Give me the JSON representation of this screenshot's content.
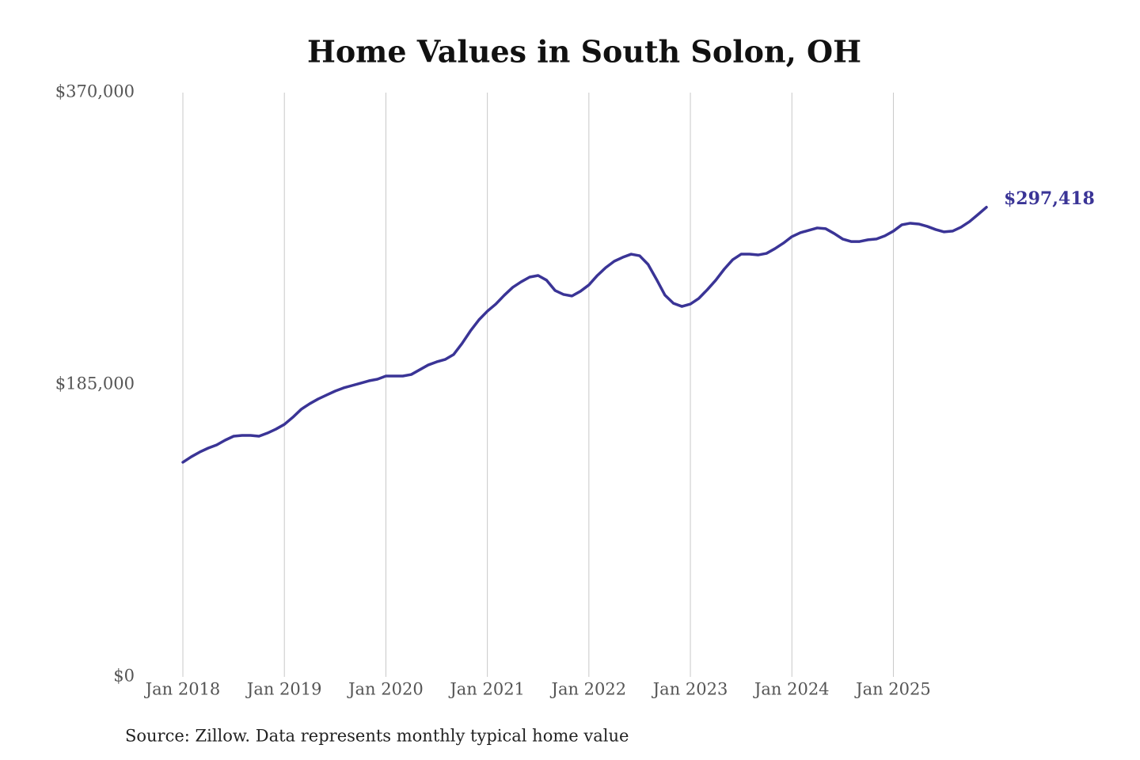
{
  "chart_data": {
    "type": "line",
    "title": "Home Values in South Solon, OH",
    "source": "Source: Zillow. Data represents monthly typical home value",
    "color": "#3a3496",
    "grid": "x",
    "x": [
      "2018-01",
      "2018-02",
      "2018-03",
      "2018-04",
      "2018-05",
      "2018-06",
      "2018-07",
      "2018-08",
      "2018-09",
      "2018-10",
      "2018-11",
      "2018-12",
      "2019-01",
      "2019-02",
      "2019-03",
      "2019-04",
      "2019-05",
      "2019-06",
      "2019-07",
      "2019-08",
      "2019-09",
      "2019-10",
      "2019-11",
      "2019-12",
      "2020-01",
      "2020-02",
      "2020-03",
      "2020-04",
      "2020-05",
      "2020-06",
      "2020-07",
      "2020-08",
      "2020-09",
      "2020-10",
      "2020-11",
      "2020-12",
      "2021-01",
      "2021-02",
      "2021-03",
      "2021-04",
      "2021-05",
      "2021-06",
      "2021-07",
      "2021-08",
      "2021-09",
      "2021-10",
      "2021-11",
      "2021-12",
      "2022-01",
      "2022-02",
      "2022-03",
      "2022-04",
      "2022-05",
      "2022-06",
      "2022-07",
      "2022-08",
      "2022-09",
      "2022-10",
      "2022-11",
      "2022-12",
      "2023-01",
      "2023-02",
      "2023-03",
      "2023-04",
      "2023-05",
      "2023-06",
      "2023-07",
      "2023-08",
      "2023-09",
      "2023-10",
      "2023-11",
      "2023-12",
      "2024-01",
      "2024-02",
      "2024-03",
      "2024-04",
      "2024-05",
      "2024-06",
      "2024-07",
      "2024-08",
      "2024-09",
      "2024-10",
      "2024-11",
      "2024-12",
      "2025-01",
      "2025-02",
      "2025-03",
      "2025-04",
      "2025-05",
      "2025-06",
      "2025-07",
      "2025-08",
      "2025-09",
      "2025-10",
      "2025-11",
      "2025-12"
    ],
    "values": [
      135900,
      139400,
      142400,
      144900,
      146900,
      149900,
      152400,
      152900,
      152900,
      152400,
      154400,
      156900,
      159900,
      164400,
      169500,
      173000,
      176000,
      178500,
      181000,
      183000,
      184500,
      186000,
      187500,
      188500,
      190500,
      190500,
      190500,
      191500,
      194500,
      197500,
      199500,
      201000,
      204100,
      211100,
      219100,
      226100,
      231600,
      236100,
      241700,
      246700,
      250200,
      253200,
      254200,
      251200,
      244700,
      242200,
      241200,
      244200,
      248200,
      254200,
      259200,
      263200,
      265700,
      267700,
      266700,
      261200,
      251700,
      241700,
      236600,
      234600,
      236100,
      239700,
      245200,
      251200,
      258200,
      264200,
      267700,
      267700,
      267200,
      268200,
      271200,
      274700,
      278800,
      281300,
      282800,
      284300,
      283800,
      280800,
      277300,
      275700,
      275700,
      276800,
      277300,
      279300,
      282300,
      286300,
      287300,
      286800,
      285300,
      283300,
      281800,
      282300,
      284800,
      288300,
      292800,
      297418
    ],
    "value_labels": [
      null,
      null,
      null,
      null,
      null,
      null,
      null,
      null,
      null,
      null,
      null,
      null,
      null,
      null,
      null,
      null,
      null,
      null,
      null,
      null,
      null,
      null,
      null,
      null,
      null,
      null,
      null,
      null,
      null,
      null,
      null,
      null,
      null,
      null,
      null,
      null,
      null,
      null,
      null,
      null,
      null,
      null,
      null,
      null,
      null,
      null,
      null,
      null,
      null,
      null,
      null,
      null,
      null,
      null,
      null,
      null,
      null,
      null,
      null,
      null,
      null,
      null,
      null,
      null,
      null,
      null,
      null,
      null,
      null,
      null,
      null,
      null,
      null,
      null,
      null,
      null,
      null,
      null,
      null,
      null,
      null,
      null,
      null,
      null,
      null,
      null,
      null,
      null,
      null,
      null,
      null,
      null,
      null,
      null,
      null,
      "$297,418"
    ],
    "xticks": [
      {
        "value": "2018-01",
        "label": "Jan 2018"
      },
      {
        "value": "2019-01",
        "label": "Jan 2019"
      },
      {
        "value": "2020-01",
        "label": "Jan 2020"
      },
      {
        "value": "2021-01",
        "label": "Jan 2021"
      },
      {
        "value": "2022-01",
        "label": "Jan 2022"
      },
      {
        "value": "2023-01",
        "label": "Jan 2023"
      },
      {
        "value": "2024-01",
        "label": "Jan 2024"
      },
      {
        "value": "2025-01",
        "label": "Jan 2025"
      }
    ],
    "ylim": [
      0,
      370000
    ],
    "yticks": [
      {
        "value": 0,
        "label": "$0"
      },
      {
        "value": 185000,
        "label": "$185,000"
      },
      {
        "value": 370000,
        "label": "$370,000"
      }
    ]
  }
}
